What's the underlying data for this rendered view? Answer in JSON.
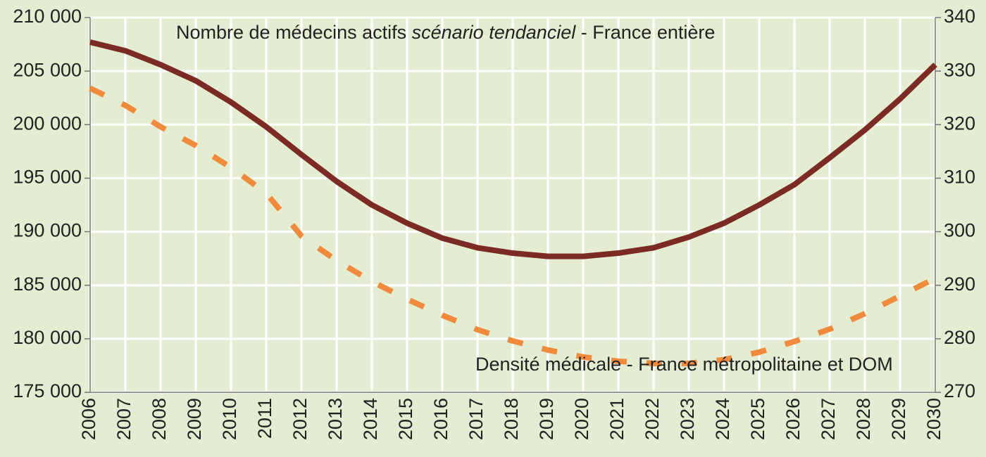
{
  "chart_data": {
    "type": "line",
    "annotations": [
      [
        "Nombre de médecins actifs ",
        "scénario tendanciel",
        " - France entière"
      ],
      "Densité médicale - France métropolitaine et DOM"
    ],
    "x": [
      2006,
      2007,
      2008,
      2009,
      2010,
      2011,
      2012,
      2013,
      2014,
      2015,
      2016,
      2017,
      2018,
      2019,
      2020,
      2021,
      2022,
      2023,
      2024,
      2025,
      2026,
      2027,
      2028,
      2029,
      2030
    ],
    "xlim": [
      2006,
      2030
    ],
    "xticks": [
      2006,
      2007,
      2008,
      2009,
      2010,
      2011,
      2012,
      2013,
      2014,
      2015,
      2016,
      2017,
      2018,
      2019,
      2020,
      2021,
      2022,
      2023,
      2024,
      2025,
      2026,
      2027,
      2028,
      2029,
      2030
    ],
    "ylim": [
      175000,
      210000
    ],
    "yticks": [
      {
        "value": 175000,
        "label": "175 000"
      },
      {
        "value": 180000,
        "label": "180 000"
      },
      {
        "value": 185000,
        "label": "185 000"
      },
      {
        "value": 190000,
        "label": "190 000"
      },
      {
        "value": 195000,
        "label": "195 000"
      },
      {
        "value": 200000,
        "label": "200 000"
      },
      {
        "value": 205000,
        "label": "205 000"
      },
      {
        "value": 210000,
        "label": "210 000"
      }
    ],
    "y2lim": [
      270,
      340
    ],
    "y2ticks": [
      270,
      280,
      290,
      300,
      310,
      320,
      330,
      340
    ],
    "grid": true,
    "series": [
      {
        "color": "#7b2a24",
        "style": "solid",
        "values": [
          207700,
          206900,
          205600,
          204100,
          202100,
          199800,
          197200,
          194700,
          192500,
          190800,
          189400,
          188500,
          188000,
          187700,
          187700,
          188000,
          188500,
          189500,
          190800,
          192500,
          194400,
          196900,
          199500,
          202400,
          205600
        ]
      },
      {
        "color": "#f08a3c",
        "style": "dashed",
        "axis": "y2",
        "values": [
          326.8,
          323.6,
          319.6,
          316.1,
          312,
          307.2,
          299.2,
          294.6,
          290.7,
          287.4,
          284.4,
          281.7,
          279.6,
          277.9,
          276.6,
          275.8,
          275.4,
          275.4,
          276.1,
          277.5,
          279.5,
          281.8,
          284.7,
          288,
          291.3
        ]
      }
    ]
  }
}
